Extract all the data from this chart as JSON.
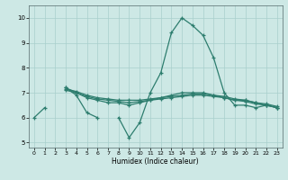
{
  "xlabel": "Humidex (Indice chaleur)",
  "x_values": [
    0,
    1,
    2,
    3,
    4,
    5,
    6,
    7,
    8,
    9,
    10,
    11,
    12,
    13,
    14,
    15,
    16,
    17,
    18,
    19,
    20,
    21,
    22,
    23
  ],
  "line1": [
    6.0,
    6.4,
    null,
    7.2,
    6.9,
    6.2,
    6.0,
    null,
    6.0,
    5.2,
    5.8,
    7.0,
    7.8,
    9.4,
    10.0,
    9.7,
    9.3,
    8.4,
    7.0,
    6.5,
    6.5,
    6.4,
    6.5,
    6.4
  ],
  "line2": [
    null,
    null,
    null,
    7.2,
    7.0,
    6.8,
    6.7,
    6.6,
    6.6,
    6.5,
    6.6,
    6.7,
    6.8,
    6.9,
    7.0,
    7.0,
    7.0,
    6.9,
    6.8,
    6.7,
    6.7,
    6.6,
    6.5,
    6.4
  ],
  "line3": [
    null,
    null,
    null,
    7.15,
    7.05,
    6.9,
    6.8,
    6.75,
    6.7,
    6.7,
    6.7,
    6.75,
    6.8,
    6.85,
    6.9,
    6.95,
    6.95,
    6.9,
    6.85,
    6.75,
    6.7,
    6.6,
    6.55,
    6.45
  ],
  "line4": [
    null,
    null,
    null,
    7.1,
    7.0,
    6.85,
    6.75,
    6.7,
    6.65,
    6.6,
    6.65,
    6.7,
    6.75,
    6.8,
    6.85,
    6.9,
    6.9,
    6.85,
    6.8,
    6.7,
    6.65,
    6.55,
    6.5,
    6.4
  ],
  "line_color": "#2d7d6e",
  "bg_color": "#cde8e5",
  "grid_color": "#a8cfcc",
  "ylim": [
    4.8,
    10.5
  ],
  "xlim": [
    -0.5,
    23.5
  ],
  "yticks": [
    5,
    6,
    7,
    8,
    9,
    10
  ],
  "xticks": [
    0,
    1,
    2,
    3,
    4,
    5,
    6,
    7,
    8,
    9,
    10,
    11,
    12,
    13,
    14,
    15,
    16,
    17,
    18,
    19,
    20,
    21,
    22,
    23
  ]
}
